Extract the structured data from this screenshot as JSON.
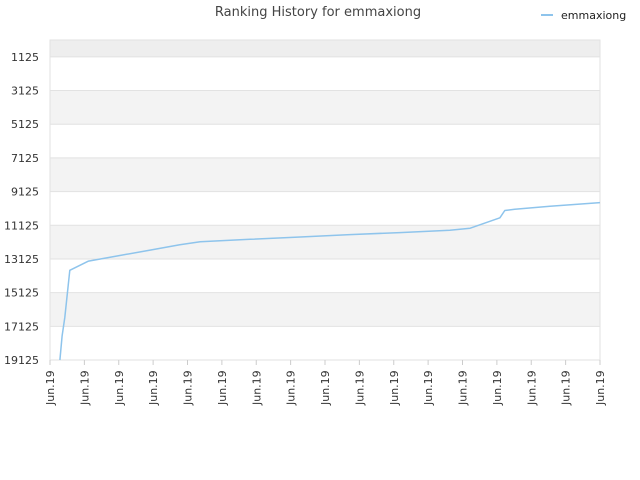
{
  "chart_data": {
    "type": "line",
    "title": "Ranking History for emmaxiong",
    "xlabel": "",
    "ylabel": "",
    "y_inverted": true,
    "ylim": [
      19125,
      125
    ],
    "y_ticks": [
      "1125",
      "3125",
      "5125",
      "7125",
      "9125",
      "11125",
      "13125",
      "15125",
      "17125",
      "19125"
    ],
    "x_ticks": [
      "Jun.19",
      "Jun.19",
      "Jun.19",
      "Jun.19",
      "Jun.19",
      "Jun.19",
      "Jun.19",
      "Jun.19",
      "Jun.19",
      "Jun.19",
      "Jun.19",
      "Jun.19",
      "Jun.19",
      "Jun.19",
      "Jun.19",
      "Jun.19",
      "Jun.19"
    ],
    "grid": true,
    "legend_position": "top-right",
    "series": [
      {
        "name": "emmaxiong",
        "color": "#8ec4ec",
        "x": [
          0.018,
          0.022,
          0.027,
          0.036,
          0.07,
          0.127,
          0.182,
          0.236,
          0.273,
          0.364,
          0.455,
          0.545,
          0.636,
          0.727,
          0.764,
          0.818,
          0.827,
          0.845,
          0.909,
          1.0
        ],
        "y": [
          19125,
          17700,
          16600,
          13800,
          13250,
          12920,
          12600,
          12280,
          12100,
          11960,
          11820,
          11680,
          11560,
          11420,
          11300,
          10680,
          10250,
          10170,
          10000,
          9780
        ]
      }
    ]
  }
}
